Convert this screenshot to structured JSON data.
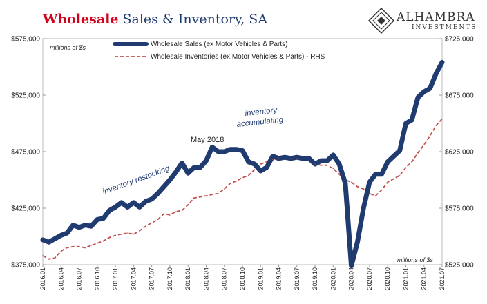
{
  "title": {
    "part1": "Wholesale",
    "part2": " Sales & Inventory, SA"
  },
  "logo": {
    "name": "ALHAMBRA",
    "sub": "INVESTMENTS"
  },
  "units_left": "millions of $s",
  "units_right": "millions of $s",
  "annotations": {
    "restocking": "inventory restocking",
    "may2018": "May 2018",
    "accum1": "inventory",
    "accum2": "accumulating"
  },
  "colors": {
    "sales": "#1f3b70",
    "inventories": "#c0504d",
    "title_accent": "#d0021b"
  },
  "chart_data": {
    "type": "line",
    "x": [
      "2016.01",
      "2016.02",
      "2016.03",
      "2016.04",
      "2016.05",
      "2016.06",
      "2016.07",
      "2016.08",
      "2016.09",
      "2016.10",
      "2016.11",
      "2016.12",
      "2017.01",
      "2017.02",
      "2017.03",
      "2017.04",
      "2017.05",
      "2017.06",
      "2017.07",
      "2017.08",
      "2017.09",
      "2017.10",
      "2017.11",
      "2017.12",
      "2018.01",
      "2018.02",
      "2018.03",
      "2018.04",
      "2018.05",
      "2018.06",
      "2018.07",
      "2018.08",
      "2018.09",
      "2018.10",
      "2018.11",
      "2018.12",
      "2019.01",
      "2019.02",
      "2019.03",
      "2019.04",
      "2019.05",
      "2019.06",
      "2019.07",
      "2019.08",
      "2019.09",
      "2019.10",
      "2019.11",
      "2019.12",
      "2020.01",
      "2020.02",
      "2020.03",
      "2020.04",
      "2020.05",
      "2020.06",
      "2020.07",
      "2020.08",
      "2020.09",
      "2020.10",
      "2020.11",
      "2020.12",
      "2021.01",
      "2021.02",
      "2021.03",
      "2021.04",
      "2021.05",
      "2021.06",
      "2021.07"
    ],
    "x_tick_labels": [
      "2016.01",
      "2016.04",
      "2016.07",
      "2016.10",
      "2017.01",
      "2017.04",
      "2017.07",
      "2017.10",
      "2018.01",
      "2018.04",
      "2018.07",
      "2018.10",
      "2019.01",
      "2019.04",
      "2019.07",
      "2019.10",
      "2020.01",
      "2020.04",
      "2020.07",
      "2020.10",
      "2021.01",
      "2021.04",
      "2021.07"
    ],
    "series": [
      {
        "name": "Wholesale Sales (ex Motor Vehicles & Parts)",
        "axis": "left",
        "values": [
          397000,
          395000,
          398000,
          401000,
          403000,
          410000,
          408000,
          410000,
          409000,
          415000,
          416000,
          423000,
          426000,
          430000,
          426000,
          430000,
          426000,
          431000,
          433000,
          438000,
          444000,
          450000,
          457000,
          465000,
          456000,
          461000,
          461000,
          467000,
          479000,
          475000,
          475000,
          477000,
          477000,
          476000,
          466000,
          464000,
          458000,
          461000,
          471000,
          469000,
          470000,
          469000,
          470000,
          469000,
          469000,
          464000,
          467000,
          467000,
          472000,
          464000,
          447000,
          374000,
          395000,
          425000,
          448000,
          455000,
          455000,
          466000,
          471000,
          476000,
          500000,
          503000,
          523000,
          528000,
          531000,
          544000,
          554000
        ]
      },
      {
        "name": "Wholesale Inventories (ex Motor Vehicles & Parts) - RHS",
        "axis": "right",
        "values": [
          533000,
          530000,
          531000,
          537000,
          540000,
          541000,
          541000,
          540000,
          542000,
          544000,
          546000,
          549000,
          551000,
          552000,
          553000,
          552000,
          555000,
          559000,
          562000,
          565000,
          570000,
          569000,
          572000,
          573000,
          578000,
          584000,
          585000,
          586000,
          587000,
          588000,
          592000,
          597000,
          599000,
          602000,
          604000,
          609000,
          614000,
          616000,
          618000,
          619000,
          619000,
          619000,
          619000,
          619000,
          617000,
          614000,
          613000,
          613000,
          610000,
          605000,
          600000,
          598000,
          594000,
          592000,
          588000,
          586000,
          591000,
          598000,
          601000,
          604000,
          611000,
          616000,
          624000,
          631000,
          639000,
          648000,
          654000
        ]
      }
    ],
    "y_left": {
      "ylim": [
        375000,
        575000
      ],
      "ticks": [
        "$375,000",
        "$425,000",
        "$475,000",
        "$525,000",
        "$575,000"
      ],
      "tick_values": [
        375000,
        425000,
        475000,
        525000,
        575000
      ]
    },
    "y_right": {
      "ylim": [
        525000,
        725000
      ],
      "ticks": [
        "$525,000",
        "$575,000",
        "$625,000",
        "$675,000",
        "$725,000"
      ],
      "tick_values": [
        525000,
        575000,
        625000,
        675000,
        725000
      ]
    },
    "grid": false,
    "legend": "top-center"
  }
}
